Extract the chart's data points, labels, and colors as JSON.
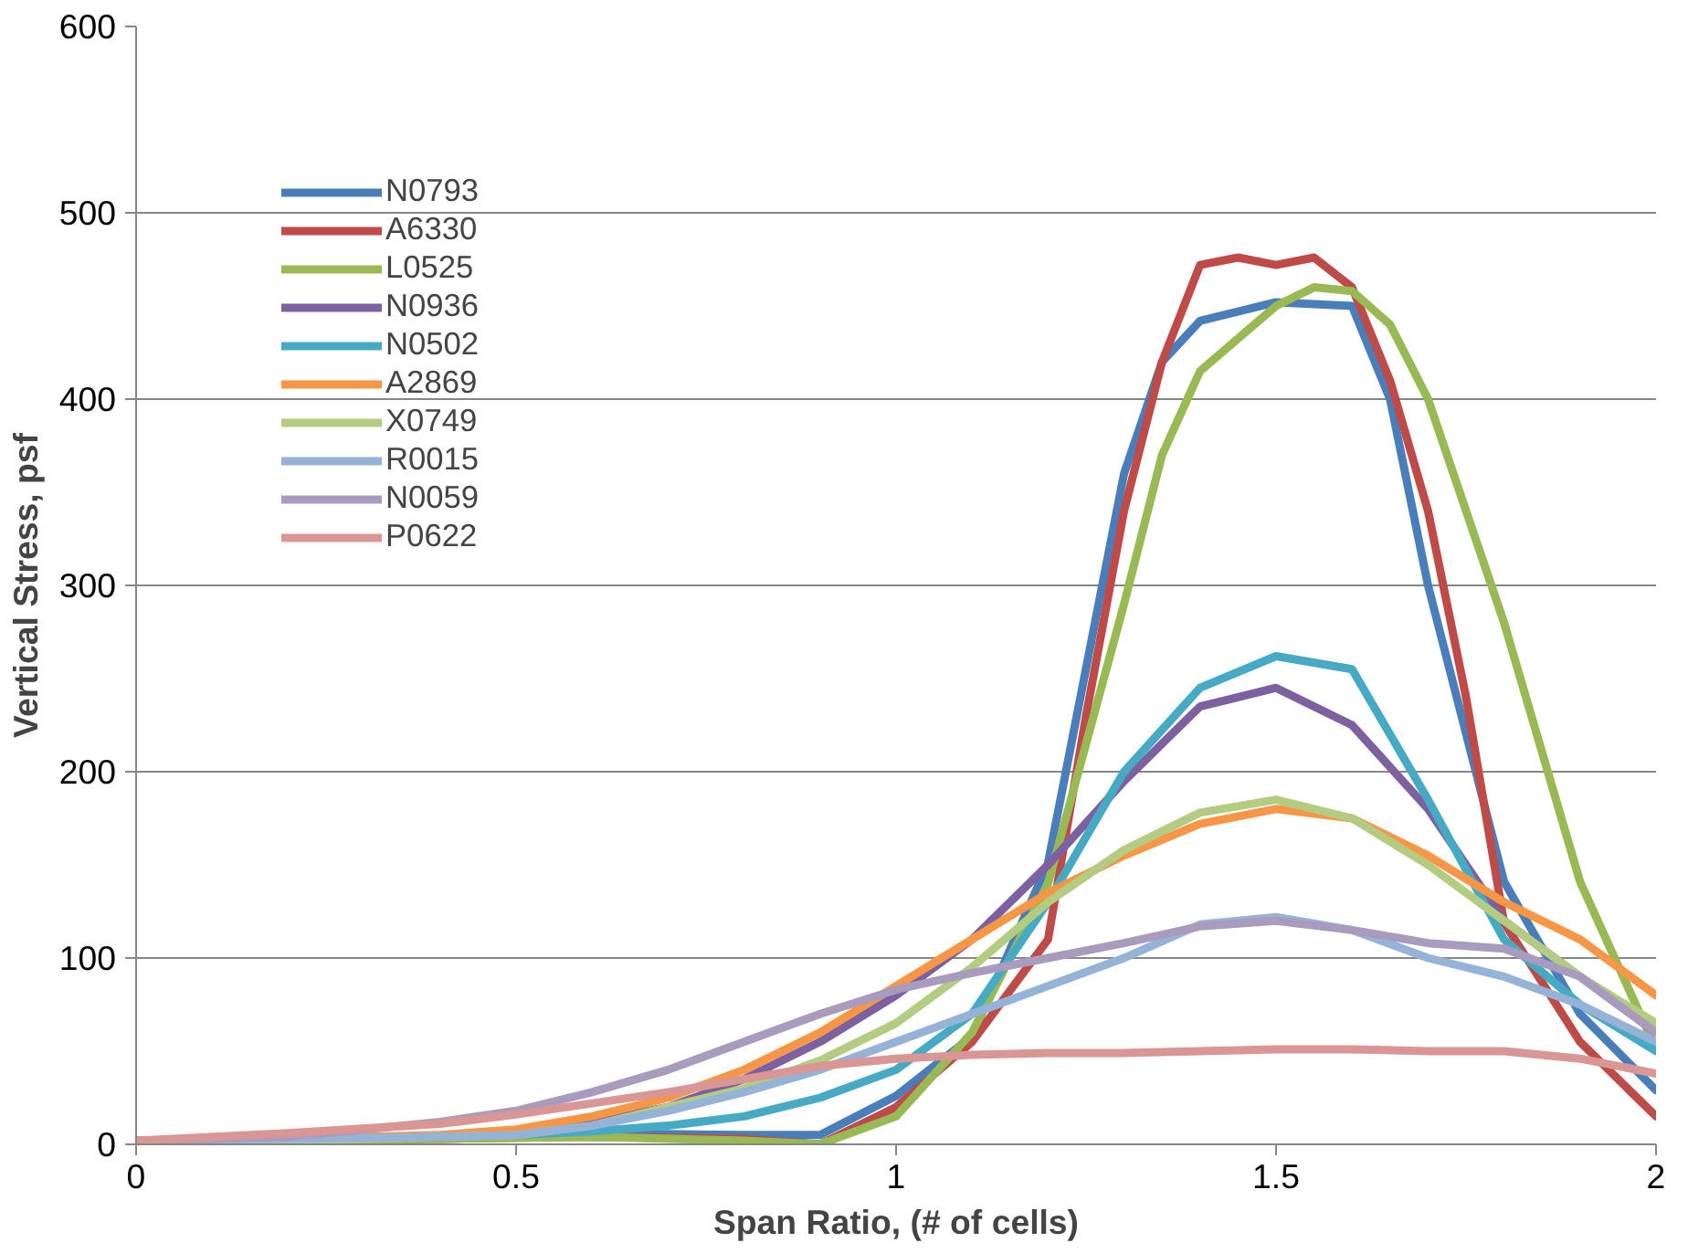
{
  "chart_data": {
    "type": "line",
    "xlabel": "Span Ratio, (# of cells)",
    "ylabel": "Vertical Stress, psf",
    "xlim": [
      0,
      2
    ],
    "xticks": [
      0,
      0.5,
      1,
      1.5,
      2
    ],
    "ylim": [
      0,
      600
    ],
    "yticks": [
      0,
      100,
      200,
      300,
      400,
      500,
      600
    ],
    "grid": "y",
    "legend": "top left",
    "marker": "none",
    "line_style": "solid",
    "series": [
      {
        "name": "N0793",
        "color": "#4a7ebb",
        "x": [
          0,
          0.2,
          0.4,
          0.6,
          0.8,
          0.9,
          1.0,
          1.1,
          1.2,
          1.3,
          1.35,
          1.4,
          1.5,
          1.6,
          1.65,
          1.7,
          1.8,
          1.9,
          2.0
        ],
        "values": [
          2,
          2,
          4,
          6,
          5,
          5,
          26,
          58,
          151,
          360,
          420,
          442,
          452,
          450,
          400,
          300,
          141,
          70,
          29
        ]
      },
      {
        "name": "A6330",
        "color": "#be4b48",
        "x": [
          0,
          0.2,
          0.4,
          0.6,
          0.8,
          0.9,
          1.0,
          1.1,
          1.2,
          1.25,
          1.3,
          1.35,
          1.4,
          1.45,
          1.5,
          1.55,
          1.6,
          1.65,
          1.7,
          1.75,
          1.8,
          1.9,
          2.0
        ],
        "values": [
          2,
          2,
          3,
          4,
          3,
          0,
          20,
          55,
          110,
          230,
          340,
          420,
          472,
          476,
          472,
          476,
          460,
          410,
          340,
          240,
          119,
          55,
          15
        ]
      },
      {
        "name": "L0525",
        "color": "#98b954",
        "x": [
          0,
          0.2,
          0.4,
          0.6,
          0.8,
          0.9,
          1.0,
          1.1,
          1.2,
          1.3,
          1.35,
          1.4,
          1.5,
          1.55,
          1.6,
          1.65,
          1.7,
          1.8,
          1.9,
          2.0
        ],
        "values": [
          2,
          2,
          3,
          4,
          2,
          0,
          15,
          60,
          140,
          290,
          370,
          415,
          450,
          460,
          458,
          440,
          400,
          280,
          141,
          51
        ]
      },
      {
        "name": "N0936",
        "color": "#7d60a0",
        "x": [
          0,
          0.2,
          0.4,
          0.5,
          0.6,
          0.7,
          0.8,
          0.9,
          1.0,
          1.1,
          1.2,
          1.3,
          1.4,
          1.5,
          1.6,
          1.7,
          1.8,
          1.9,
          2.0
        ],
        "values": [
          2,
          3,
          4,
          6,
          12,
          20,
          35,
          55,
          80,
          110,
          150,
          195,
          235,
          245,
          225,
          180,
          120,
          90,
          60
        ]
      },
      {
        "name": "N0502",
        "color": "#46aac5",
        "x": [
          0,
          0.2,
          0.4,
          0.5,
          0.6,
          0.7,
          0.8,
          0.9,
          1.0,
          1.1,
          1.2,
          1.3,
          1.4,
          1.5,
          1.6,
          1.7,
          1.8,
          1.9,
          2.0
        ],
        "values": [
          2,
          3,
          4,
          5,
          7,
          10,
          15,
          25,
          40,
          70,
          130,
          200,
          245,
          262,
          255,
          185,
          110,
          75,
          50
        ]
      },
      {
        "name": "A2869",
        "color": "#f79646",
        "x": [
          0,
          0.2,
          0.4,
          0.5,
          0.6,
          0.7,
          0.8,
          0.9,
          1.0,
          1.1,
          1.2,
          1.3,
          1.4,
          1.5,
          1.6,
          1.7,
          1.8,
          1.9,
          2.0
        ],
        "values": [
          2,
          3,
          5,
          8,
          15,
          25,
          40,
          60,
          85,
          110,
          135,
          155,
          172,
          180,
          175,
          155,
          130,
          110,
          80
        ]
      },
      {
        "name": "X0749",
        "color": "#b3cc82",
        "x": [
          0,
          0.2,
          0.4,
          0.5,
          0.6,
          0.7,
          0.8,
          0.9,
          1.0,
          1.1,
          1.2,
          1.3,
          1.4,
          1.5,
          1.6,
          1.7,
          1.8,
          1.9,
          2.0
        ],
        "values": [
          2,
          2,
          4,
          5,
          10,
          20,
          30,
          45,
          65,
          95,
          130,
          158,
          178,
          185,
          175,
          150,
          120,
          90,
          65
        ]
      },
      {
        "name": "R0015",
        "color": "#95b3d7",
        "x": [
          0,
          0.2,
          0.4,
          0.5,
          0.6,
          0.7,
          0.8,
          0.9,
          1.0,
          1.1,
          1.2,
          1.3,
          1.4,
          1.5,
          1.6,
          1.7,
          1.8,
          1.9,
          2.0
        ],
        "values": [
          2,
          3,
          4,
          5,
          10,
          18,
          28,
          40,
          55,
          70,
          85,
          100,
          118,
          122,
          115,
          100,
          90,
          75,
          55
        ]
      },
      {
        "name": "N0059",
        "color": "#a99bbd",
        "x": [
          0,
          0.2,
          0.3,
          0.4,
          0.5,
          0.6,
          0.7,
          0.8,
          0.9,
          1.0,
          1.1,
          1.2,
          1.3,
          1.4,
          1.5,
          1.6,
          1.7,
          1.8,
          1.9,
          2.0
        ],
        "values": [
          2,
          4,
          8,
          12,
          18,
          28,
          40,
          55,
          70,
          83,
          92,
          100,
          108,
          117,
          120,
          115,
          108,
          105,
          90,
          60
        ]
      },
      {
        "name": "P0622",
        "color": "#d99694",
        "x": [
          0,
          0.2,
          0.4,
          0.5,
          0.6,
          0.7,
          0.8,
          0.9,
          1.0,
          1.1,
          1.2,
          1.3,
          1.4,
          1.5,
          1.6,
          1.7,
          1.8,
          1.9,
          2.0
        ],
        "values": [
          2,
          6,
          11,
          16,
          22,
          28,
          35,
          42,
          46,
          48,
          49,
          49,
          50,
          51,
          51,
          50,
          50,
          46,
          38
        ]
      }
    ]
  }
}
